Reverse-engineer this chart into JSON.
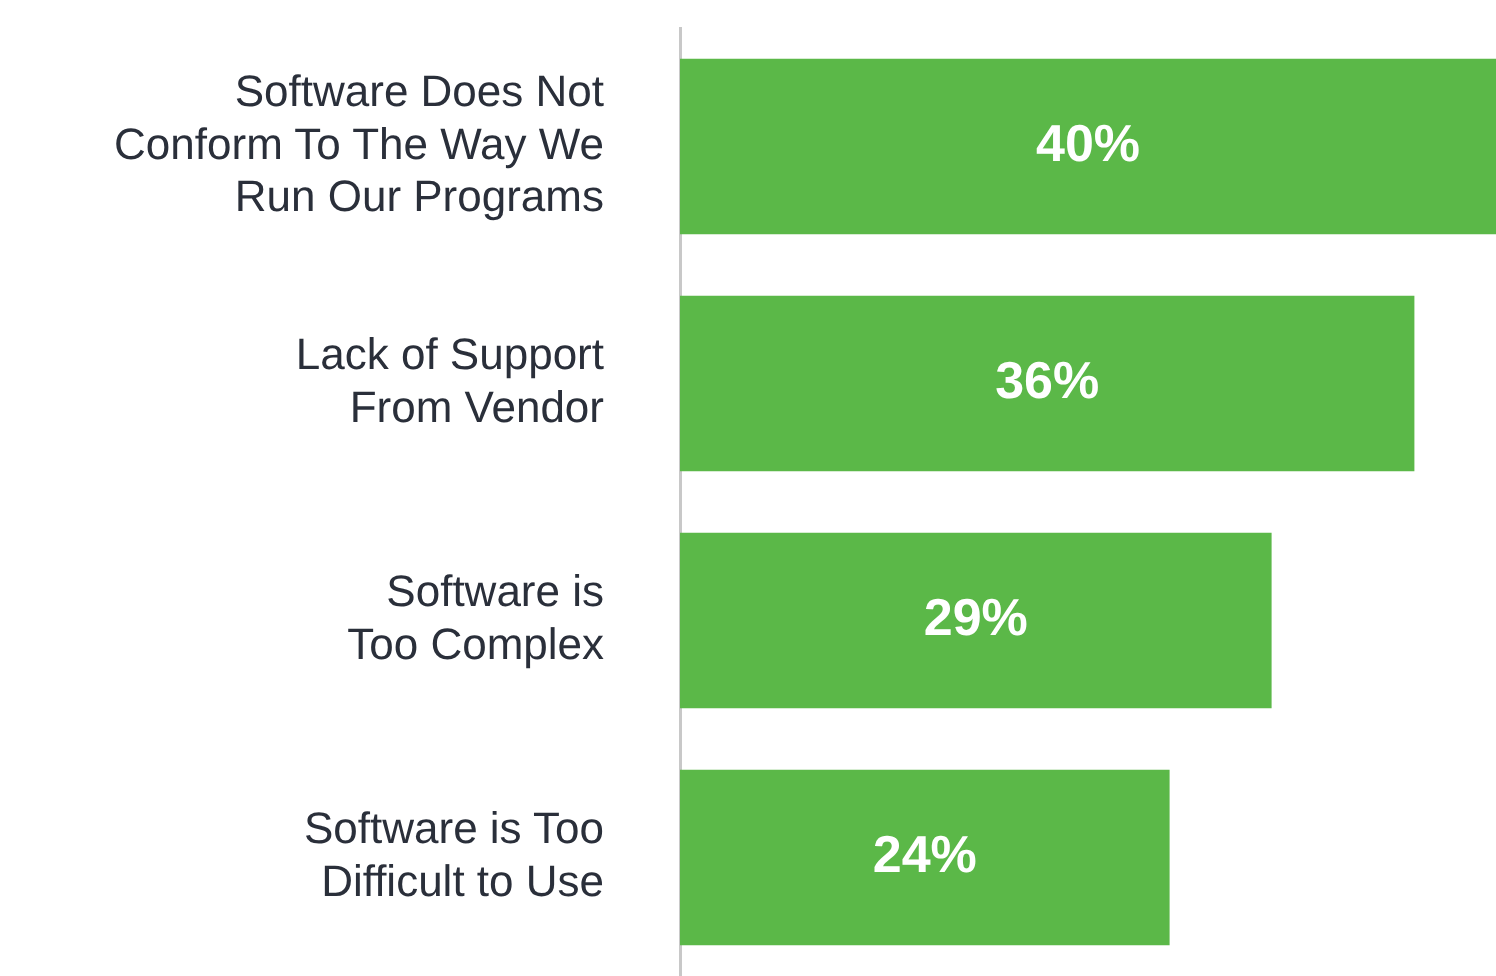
{
  "chart_data": {
    "type": "bar",
    "orientation": "horizontal",
    "categories": [
      "Software Does Not\nConform To The Way We\nRun Our Programs",
      "Lack of Support\nFrom Vendor",
      "Software is\nToo Complex",
      "Software is Too\nDifficult to Use"
    ],
    "values": [
      40,
      36,
      29,
      24
    ],
    "value_labels": [
      "40%",
      "36%",
      "29%",
      "24%"
    ],
    "color": "#5bb848"
  }
}
